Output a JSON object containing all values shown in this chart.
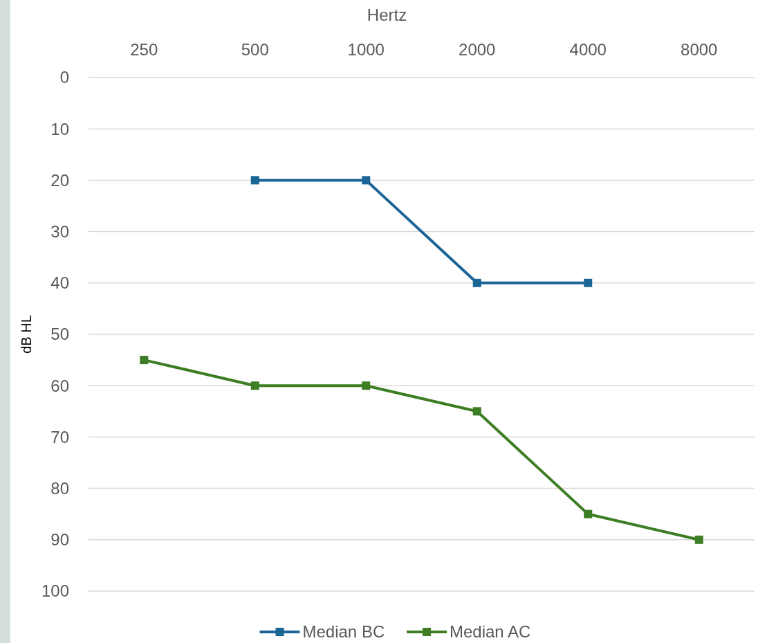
{
  "chart_data": {
    "type": "line",
    "xlabel": "Hertz",
    "ylabel": "dB HL",
    "categories": [
      "250",
      "500",
      "1000",
      "2000",
      "4000",
      "8000"
    ],
    "series": [
      {
        "name": "Median BC",
        "color": "#1a6496",
        "values": [
          null,
          20,
          20,
          40,
          40,
          null
        ]
      },
      {
        "name": "Median AC",
        "color": "#3d7d23",
        "values": [
          55,
          60,
          60,
          65,
          85,
          90
        ]
      }
    ],
    "ylim": [
      100,
      0
    ],
    "yticks": [
      0,
      10,
      20,
      30,
      40,
      50,
      60,
      70,
      80,
      90,
      100
    ],
    "grid": "y",
    "legend": "bottom",
    "marker": "square",
    "line_style": "solid"
  }
}
